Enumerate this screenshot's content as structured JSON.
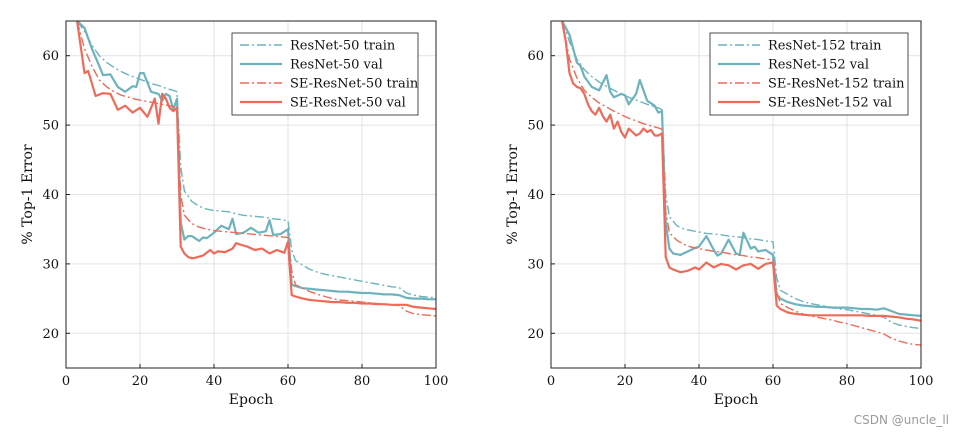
{
  "watermark": "CSDN @uncle_ll",
  "colors": {
    "resnet": "#6db3bd",
    "se": "#ef6a58",
    "grid": "#e3e3e3",
    "axis": "#222222"
  },
  "chart_data": [
    {
      "type": "line",
      "title": "",
      "xlabel": "Epoch",
      "ylabel": "% Top-1 Error",
      "xlim": [
        0,
        100
      ],
      "ylim": [
        15,
        65
      ],
      "xticks": [
        0,
        20,
        40,
        60,
        80,
        100
      ],
      "yticks": [
        20,
        30,
        40,
        50,
        60
      ],
      "grid": true,
      "legend_position": "top-right",
      "series": [
        {
          "name": "ResNet-50 train",
          "color_key": "resnet",
          "style": "dashdot",
          "x": [
            3,
            5,
            7,
            9,
            11,
            13,
            15,
            17,
            19,
            21,
            23,
            25,
            27,
            29,
            30,
            31,
            32,
            34,
            36,
            38,
            40,
            42,
            44,
            46,
            48,
            50,
            52,
            54,
            56,
            58,
            60,
            61,
            62,
            64,
            66,
            68,
            70,
            72,
            74,
            76,
            78,
            80,
            82,
            84,
            86,
            88,
            90,
            92,
            94,
            96,
            98,
            100
          ],
          "y": [
            65,
            63.5,
            61.5,
            60,
            59,
            58.3,
            57.7,
            57.2,
            56.8,
            56.4,
            56,
            55.7,
            55.3,
            55,
            54.8,
            44,
            40.5,
            39,
            38.3,
            37.9,
            37.7,
            37.6,
            37.5,
            37.2,
            37,
            36.9,
            36.8,
            36.7,
            36.5,
            36.4,
            36.2,
            32,
            30.5,
            29.8,
            29.2,
            28.8,
            28.5,
            28.3,
            28.1,
            27.9,
            27.7,
            27.5,
            27.3,
            27.1,
            26.9,
            26.7,
            26.6,
            25.8,
            25.5,
            25.3,
            25.2,
            25.1
          ]
        },
        {
          "name": "ResNet-50 val",
          "color_key": "resnet",
          "style": "solid",
          "x": [
            3,
            5,
            7,
            9,
            10,
            12,
            14,
            16,
            18,
            19,
            20,
            21,
            23,
            25,
            26,
            27,
            28,
            29,
            30,
            31,
            32,
            33,
            34,
            36,
            37,
            38,
            40,
            42,
            44,
            45,
            46,
            48,
            50,
            52,
            54,
            55,
            56,
            58,
            60,
            61,
            62,
            64,
            66,
            68,
            70,
            72,
            74,
            76,
            78,
            80,
            82,
            84,
            86,
            88,
            90,
            92,
            94,
            96,
            98,
            100
          ],
          "y": [
            65,
            64,
            61,
            58.5,
            57.2,
            57.3,
            55.5,
            54.8,
            55.6,
            55.5,
            57.5,
            57.5,
            54.8,
            54.5,
            53.5,
            54.5,
            54.2,
            52.2,
            53.8,
            36,
            33.5,
            34,
            34,
            33.3,
            33.8,
            33.7,
            34.5,
            35.5,
            35,
            36.5,
            34.3,
            34.5,
            35.2,
            34.5,
            34.7,
            36.3,
            34.2,
            34.3,
            35,
            27,
            26.8,
            26.5,
            26.4,
            26.3,
            26.2,
            26.1,
            26,
            26,
            25.9,
            25.8,
            25.8,
            25.7,
            25.6,
            25.6,
            25.5,
            25.1,
            25,
            25,
            24.9,
            24.9
          ]
        },
        {
          "name": "SE-ResNet-50 train",
          "color_key": "se",
          "style": "dashdot",
          "x": [
            3,
            5,
            7,
            9,
            11,
            13,
            15,
            17,
            19,
            21,
            23,
            25,
            27,
            29,
            30,
            31,
            32,
            34,
            36,
            38,
            40,
            42,
            44,
            46,
            48,
            50,
            52,
            54,
            56,
            58,
            60,
            61,
            62,
            64,
            66,
            68,
            70,
            72,
            74,
            76,
            78,
            80,
            82,
            84,
            86,
            88,
            90,
            92,
            94,
            96,
            98,
            100
          ],
          "y": [
            65,
            61,
            58.5,
            56.5,
            55.5,
            54.8,
            54.3,
            54,
            53.7,
            53.5,
            53.3,
            53.1,
            52.9,
            52.7,
            52.5,
            40,
            37,
            35.8,
            35.3,
            35,
            34.8,
            34.7,
            34.6,
            34.5,
            34.4,
            34.3,
            34.2,
            34.1,
            34,
            33.9,
            33.8,
            29,
            27,
            26.5,
            26,
            25.6,
            25.3,
            25,
            24.8,
            24.7,
            24.6,
            24.5,
            24.4,
            24.3,
            24.2,
            24.1,
            24,
            23.2,
            22.8,
            22.7,
            22.6,
            22.5
          ]
        },
        {
          "name": "SE-ResNet-50 val",
          "color_key": "se",
          "style": "solid",
          "x": [
            3,
            5,
            6,
            8,
            10,
            12,
            14,
            16,
            18,
            20,
            22,
            24,
            25,
            26,
            27,
            28,
            29,
            30,
            31,
            32,
            33,
            34,
            35,
            37,
            39,
            40,
            41,
            43,
            45,
            46,
            47,
            49,
            51,
            53,
            55,
            57,
            59,
            60,
            61,
            62,
            64,
            66,
            68,
            70,
            72,
            74,
            76,
            78,
            80,
            82,
            84,
            86,
            88,
            90,
            92,
            94,
            96,
            98,
            100
          ],
          "y": [
            65,
            57.5,
            57.8,
            54.2,
            54.6,
            54.5,
            52.2,
            52.8,
            51.8,
            52.5,
            51.2,
            53.8,
            50.2,
            54.5,
            53.8,
            52.5,
            52,
            52.5,
            32.5,
            31.5,
            31,
            30.8,
            30.9,
            31.2,
            32,
            31.5,
            31.8,
            31.7,
            32.2,
            33,
            32.8,
            32.5,
            32,
            32.2,
            31.5,
            32,
            31.6,
            33.2,
            25.5,
            25.3,
            25,
            24.8,
            24.7,
            24.6,
            24.5,
            24.5,
            24.4,
            24.4,
            24.3,
            24.3,
            24.2,
            24.2,
            24.1,
            24.1,
            24.1,
            23.8,
            23.7,
            23.6,
            23.5
          ]
        }
      ]
    },
    {
      "type": "line",
      "title": "",
      "xlabel": "Epoch",
      "ylabel": "% Top-1 Error",
      "xlim": [
        0,
        100
      ],
      "ylim": [
        15,
        65
      ],
      "xticks": [
        0,
        20,
        40,
        60,
        80,
        100
      ],
      "yticks": [
        20,
        30,
        40,
        50,
        60
      ],
      "grid": true,
      "legend_position": "top-right",
      "series": [
        {
          "name": "ResNet-152 train",
          "color_key": "resnet",
          "style": "dashdot",
          "x": [
            3,
            5,
            7,
            9,
            11,
            13,
            15,
            17,
            19,
            21,
            23,
            25,
            27,
            29,
            30,
            31,
            32,
            34,
            36,
            38,
            40,
            42,
            44,
            46,
            48,
            50,
            52,
            54,
            56,
            58,
            60,
            61,
            62,
            64,
            66,
            68,
            70,
            72,
            74,
            76,
            78,
            80,
            82,
            84,
            86,
            88,
            90,
            92,
            94,
            96,
            98,
            100
          ],
          "y": [
            65,
            62,
            59.5,
            58,
            57,
            56.2,
            55.6,
            55,
            54.5,
            54,
            53.6,
            53.2,
            52.8,
            52.5,
            52.2,
            40,
            36.8,
            35.5,
            35,
            34.8,
            34.6,
            34.4,
            34.3,
            34.2,
            34,
            33.9,
            33.8,
            33.6,
            33.5,
            33.3,
            33.2,
            28,
            26.2,
            25.6,
            25,
            24.6,
            24.3,
            24.1,
            23.9,
            23.7,
            23.5,
            23.4,
            23.2,
            23,
            22.8,
            22.6,
            22.3,
            21.6,
            21.2,
            21,
            20.8,
            20.7
          ]
        },
        {
          "name": "ResNet-152 val",
          "color_key": "resnet",
          "style": "solid",
          "x": [
            3,
            5,
            7,
            8,
            9,
            11,
            13,
            15,
            16,
            17,
            19,
            20,
            21,
            23,
            24,
            26,
            28,
            29,
            30,
            31,
            32,
            33,
            35,
            37,
            39,
            40,
            42,
            44,
            45,
            46,
            48,
            50,
            51,
            52,
            54,
            55,
            56,
            58,
            60,
            61,
            62,
            64,
            66,
            68,
            70,
            72,
            74,
            76,
            78,
            80,
            82,
            84,
            86,
            88,
            90,
            92,
            94,
            96,
            98,
            100
          ],
          "y": [
            65,
            63,
            59,
            58.5,
            57,
            55.5,
            55,
            57.2,
            54.8,
            54,
            54.5,
            54.3,
            53,
            54.5,
            56.5,
            53.5,
            52.8,
            51.8,
            52,
            36,
            32.2,
            31.5,
            31.3,
            31.8,
            32.3,
            32.5,
            34,
            32,
            31.2,
            31.5,
            33.5,
            31.5,
            31.3,
            34.5,
            32.2,
            32.5,
            31.8,
            32,
            31.3,
            25.5,
            25,
            24.5,
            24.2,
            24,
            23.9,
            23.8,
            23.8,
            23.7,
            23.7,
            23.7,
            23.6,
            23.5,
            23.5,
            23.4,
            23.6,
            23.2,
            22.8,
            22.7,
            22.6,
            22.5
          ]
        },
        {
          "name": "SE-ResNet-152 train",
          "color_key": "se",
          "style": "dashdot",
          "x": [
            3,
            5,
            7,
            9,
            11,
            13,
            15,
            17,
            19,
            21,
            23,
            25,
            27,
            29,
            30,
            31,
            32,
            34,
            36,
            38,
            40,
            42,
            44,
            46,
            48,
            50,
            52,
            54,
            56,
            58,
            60,
            61,
            62,
            64,
            66,
            68,
            70,
            72,
            74,
            76,
            78,
            80,
            82,
            84,
            86,
            88,
            90,
            92,
            94,
            96,
            98,
            100
          ],
          "y": [
            65,
            59.5,
            56.8,
            55,
            54,
            53.2,
            52.6,
            52,
            51.5,
            51,
            50.6,
            50.2,
            49.9,
            49.6,
            49.4,
            37.5,
            34.5,
            33.4,
            32.8,
            32.4,
            32.2,
            32,
            31.8,
            31.7,
            31.5,
            31.3,
            31.2,
            31,
            30.9,
            30.7,
            30.6,
            26,
            24.3,
            23.7,
            23.2,
            22.8,
            22.5,
            22.3,
            22.1,
            21.9,
            21.6,
            21.4,
            21.1,
            20.8,
            20.5,
            20.2,
            19.9,
            19.3,
            18.9,
            18.6,
            18.4,
            18.3
          ]
        },
        {
          "name": "SE-ResNet-152 val",
          "color_key": "se",
          "style": "solid",
          "x": [
            3,
            4,
            5,
            6,
            7,
            8,
            9,
            10,
            11,
            12,
            13,
            14,
            15,
            16,
            17,
            18,
            19,
            20,
            21,
            22,
            23,
            24,
            25,
            26,
            27,
            28,
            29,
            30,
            31,
            32,
            33,
            35,
            37,
            39,
            40,
            42,
            44,
            46,
            48,
            50,
            52,
            54,
            56,
            58,
            60,
            61,
            62,
            64,
            66,
            68,
            70,
            72,
            74,
            76,
            78,
            80,
            82,
            84,
            86,
            88,
            90,
            92,
            94,
            96,
            98,
            100
          ],
          "y": [
            65,
            62,
            57.5,
            56,
            55.5,
            55.3,
            54.5,
            53,
            52,
            51.5,
            52.5,
            51.3,
            50.5,
            51.5,
            49.5,
            50.5,
            49,
            48.2,
            49.5,
            49,
            48.5,
            48.8,
            49.5,
            49,
            49.3,
            48.5,
            48.5,
            48.8,
            31,
            29.5,
            29.2,
            28.8,
            29,
            29.5,
            29.2,
            30.2,
            29.5,
            30,
            29.8,
            29.2,
            29.8,
            30,
            29.3,
            30,
            30.2,
            24,
            23.5,
            23,
            22.8,
            22.7,
            22.6,
            22.6,
            22.6,
            22.6,
            22.6,
            22.6,
            22.6,
            22.6,
            22.5,
            22.5,
            22.5,
            22.4,
            22.3,
            22.1,
            22,
            21.8
          ]
        }
      ]
    }
  ]
}
